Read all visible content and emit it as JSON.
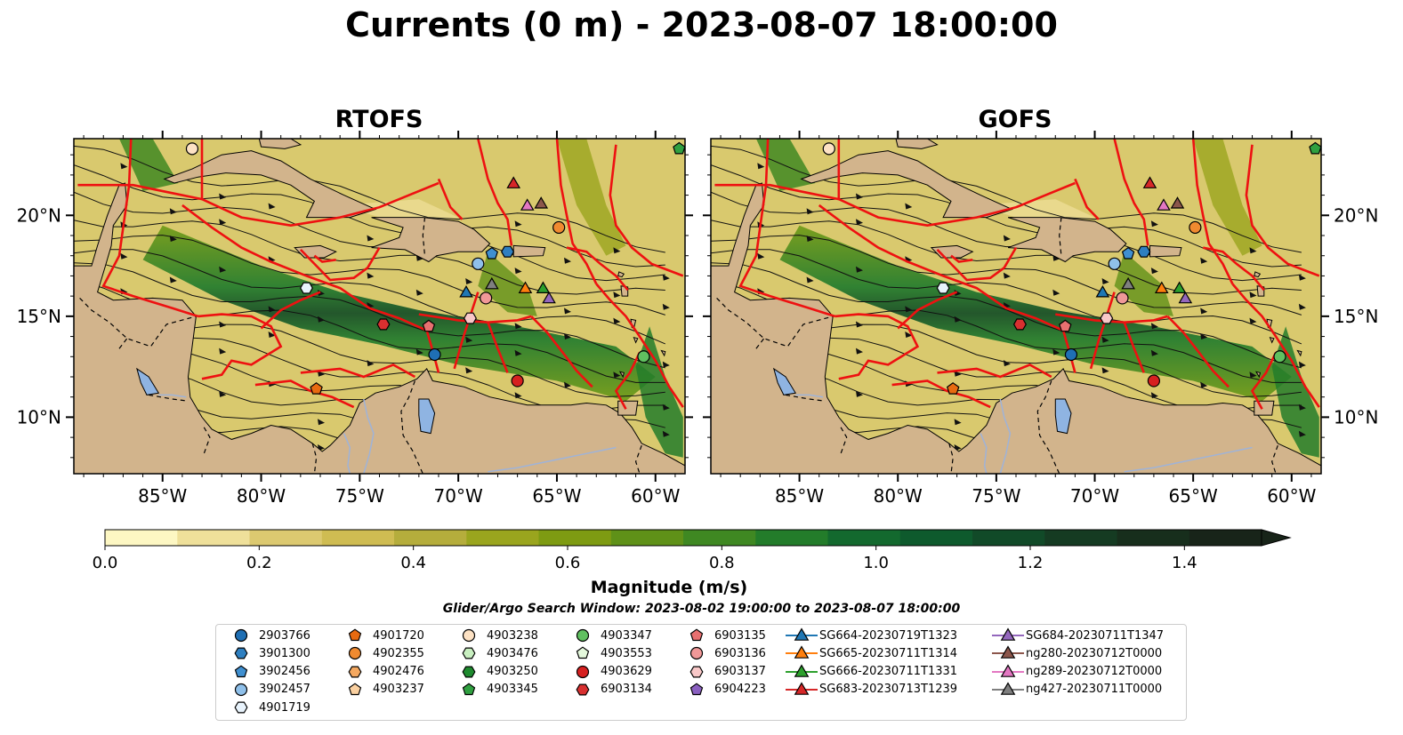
{
  "title": "Currents (0 m) - 2023-08-07 18:00:00",
  "panels": [
    {
      "title": "RTOFS"
    },
    {
      "title": "GOFS"
    }
  ],
  "map_extent": {
    "lon_min": -89.5,
    "lon_max": -58.5,
    "lat_min": 7.2,
    "lat_max": 23.8
  },
  "lon_ticks": [
    {
      "lon": -85,
      "label": "85°W"
    },
    {
      "lon": -80,
      "label": "80°W"
    },
    {
      "lon": -75,
      "label": "75°W"
    },
    {
      "lon": -70,
      "label": "70°W"
    },
    {
      "lon": -65,
      "label": "65°W"
    },
    {
      "lon": -60,
      "label": "60°W"
    }
  ],
  "lat_ticks": [
    {
      "lat": 20,
      "label": "20°N"
    },
    {
      "lat": 15,
      "label": "15°N"
    },
    {
      "lat": 10,
      "label": "10°N"
    }
  ],
  "colorbar": {
    "title": "Magnitude (m/s)",
    "min": 0.0,
    "max": 1.5,
    "ticks": [
      {
        "value": 0.0,
        "label": "0.0"
      },
      {
        "value": 0.2,
        "label": "0.2"
      },
      {
        "value": 0.4,
        "label": "0.4"
      },
      {
        "value": 0.6,
        "label": "0.6"
      },
      {
        "value": 0.8,
        "label": "0.8"
      },
      {
        "value": 1.0,
        "label": "1.0"
      },
      {
        "value": 1.2,
        "label": "1.2"
      },
      {
        "value": 1.4,
        "label": "1.4"
      }
    ],
    "colors": [
      "#fdf7c3",
      "#efe09a",
      "#dcc970",
      "#cfbc52",
      "#b5ad3c",
      "#9aa51e",
      "#7e9b12",
      "#5f9118",
      "#3f8822",
      "#237c2a",
      "#13692e",
      "#0e5a2d",
      "#114a28",
      "#153b22",
      "#172e1c",
      "#182419"
    ]
  },
  "search_window": "Glider/Argo Search Window: 2023-08-02 19:00:00 to 2023-08-07 18:00:00",
  "legend": [
    {
      "label": "2903766",
      "marker": "circle",
      "color": "#1f6fb4"
    },
    {
      "label": "3901300",
      "marker": "hexagon",
      "color": "#2e7fc0"
    },
    {
      "label": "3902456",
      "marker": "pentagon",
      "color": "#3f8fd0"
    },
    {
      "label": "3902457",
      "marker": "circle",
      "color": "#8fc0ea"
    },
    {
      "label": "4901719",
      "marker": "hexagon",
      "color": "#e8f3fc"
    },
    {
      "label": "4901720",
      "marker": "pentagon",
      "color": "#e86a10"
    },
    {
      "label": "4902355",
      "marker": "circle",
      "color": "#f08a30"
    },
    {
      "label": "4902476",
      "marker": "hexagon",
      "color": "#f4a860"
    },
    {
      "label": "4903237",
      "marker": "pentagon",
      "color": "#fad0a0"
    },
    {
      "label": "4903238",
      "marker": "circle",
      "color": "#fde2c4"
    },
    {
      "label": "4903476",
      "marker": "hexagon",
      "color": "#c8efc0"
    },
    {
      "label": "4903250",
      "marker": "hexagon",
      "color": "#1e8a2e"
    },
    {
      "label": "4903345",
      "marker": "pentagon",
      "color": "#30a040"
    },
    {
      "label": "4903347",
      "marker": "circle",
      "color": "#60c060"
    },
    {
      "label": "4903553",
      "marker": "pentagon",
      "color": "#e4f8dc"
    },
    {
      "label": "4903629",
      "marker": "circle",
      "color": "#d62020"
    },
    {
      "label": "6903134",
      "marker": "hexagon",
      "color": "#d83030"
    },
    {
      "label": "6903135",
      "marker": "pentagon",
      "color": "#e87070"
    },
    {
      "label": "6903136",
      "marker": "circle",
      "color": "#f09898"
    },
    {
      "label": "6903137",
      "marker": "hexagon",
      "color": "#f8c8c8"
    },
    {
      "label": "6904223",
      "marker": "pentagon",
      "color": "#8a60c0"
    },
    {
      "label": "SG664-20230719T1323",
      "marker": "triangle-line",
      "color": "#1f77b4"
    },
    {
      "label": "SG665-20230711T1314",
      "marker": "triangle-line",
      "color": "#ff7f0e"
    },
    {
      "label": "SG666-20230711T1331",
      "marker": "triangle-line",
      "color": "#2ca02c"
    },
    {
      "label": "SG683-20230713T1239",
      "marker": "triangle-line",
      "color": "#d62728"
    },
    {
      "label": "SG684-20230711T1347",
      "marker": "triangle-line",
      "color": "#9467bd"
    },
    {
      "label": "ng280-20230712T0000",
      "marker": "triangle-line",
      "color": "#8c564b"
    },
    {
      "label": "ng289-20230712T0000",
      "marker": "triangle-line",
      "color": "#e377c2"
    },
    {
      "label": "ng427-20230711T0000",
      "marker": "triangle-line",
      "color": "#7f7f7f"
    }
  ],
  "platforms": [
    {
      "id": "2903766",
      "lon": -71.2,
      "lat": 13.1
    },
    {
      "id": "3901300",
      "lon": -67.5,
      "lat": 18.2
    },
    {
      "id": "3902456",
      "lon": -68.3,
      "lat": 18.1
    },
    {
      "id": "3902457",
      "lon": -69.0,
      "lat": 17.6
    },
    {
      "id": "4901719",
      "lon": -77.7,
      "lat": 16.4
    },
    {
      "id": "4901720",
      "lon": -77.2,
      "lat": 11.4
    },
    {
      "id": "4902355",
      "lon": -64.9,
      "lat": 19.4
    },
    {
      "id": "4903238",
      "lon": -83.5,
      "lat": 23.3
    },
    {
      "id": "4903345",
      "lon": -58.8,
      "lat": 23.3
    },
    {
      "id": "4903347",
      "lon": -60.6,
      "lat": 13.0
    },
    {
      "id": "4903629",
      "lon": -67.0,
      "lat": 11.8
    },
    {
      "id": "6903134",
      "lon": -73.8,
      "lat": 14.6
    },
    {
      "id": "6903135",
      "lon": -71.5,
      "lat": 14.5
    },
    {
      "id": "6903136",
      "lon": -68.6,
      "lat": 15.9
    },
    {
      "id": "6903137",
      "lon": -69.4,
      "lat": 14.9
    },
    {
      "id": "SG664-20230719T1323",
      "lon": -69.6,
      "lat": 16.2
    },
    {
      "id": "SG665-20230711T1314",
      "lon": -66.6,
      "lat": 16.4
    },
    {
      "id": "SG666-20230711T1331",
      "lon": -65.7,
      "lat": 16.4
    },
    {
      "id": "SG683-20230713T1239",
      "lon": -67.2,
      "lat": 21.6
    },
    {
      "id": "SG684-20230711T1347",
      "lon": -65.4,
      "lat": 15.9
    },
    {
      "id": "ng280-20230712T0000",
      "lon": -65.8,
      "lat": 20.6
    },
    {
      "id": "ng289-20230712T0000",
      "lon": -66.5,
      "lat": 20.5
    },
    {
      "id": "ng427-20230711T0000",
      "lon": -68.3,
      "lat": 16.6
    }
  ]
}
